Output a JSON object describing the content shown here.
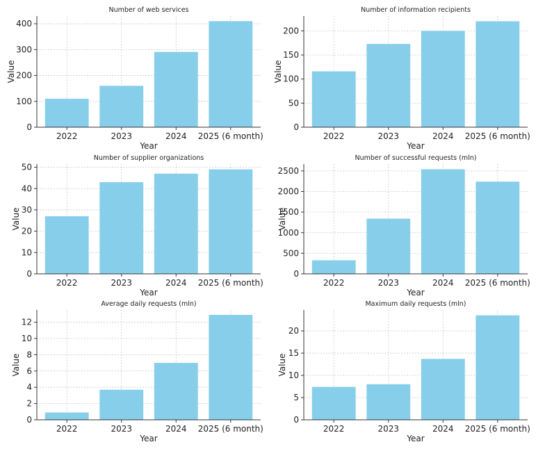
{
  "chart_data": [
    {
      "type": "bar",
      "title": "Number of web services",
      "xlabel": "Year",
      "ylabel": "Value",
      "categories": [
        "2022",
        "2023",
        "2024",
        "2025 (6 month)"
      ],
      "values": [
        110,
        160,
        291,
        410
      ],
      "ylim": [
        0,
        430
      ],
      "yticks": [
        0,
        100,
        200,
        300,
        400
      ],
      "grid": true,
      "color": "#87CEEB"
    },
    {
      "type": "bar",
      "title": "Number of information recipients",
      "xlabel": "Year",
      "ylabel": "Value",
      "categories": [
        "2022",
        "2023",
        "2024",
        "2025 (6 month)"
      ],
      "values": [
        116,
        173,
        200,
        220
      ],
      "ylim": [
        0,
        231
      ],
      "yticks": [
        0,
        50,
        100,
        150,
        200
      ],
      "grid": true,
      "color": "#87CEEB"
    },
    {
      "type": "bar",
      "title": "Number of supplier organizations",
      "xlabel": "Year",
      "ylabel": "Value",
      "categories": [
        "2022",
        "2023",
        "2024",
        "2025 (6 month)"
      ],
      "values": [
        27,
        43,
        47,
        49
      ],
      "ylim": [
        0,
        51.5
      ],
      "yticks": [
        0,
        10,
        20,
        30,
        40,
        50
      ],
      "grid": true,
      "color": "#87CEEB"
    },
    {
      "type": "bar",
      "title": "Number of successful requests (mln)",
      "xlabel": "Year",
      "ylabel": "Value",
      "categories": [
        "2022",
        "2023",
        "2024",
        "2025 (6 month)"
      ],
      "values": [
        330,
        1340,
        2540,
        2240
      ],
      "ylim": [
        0,
        2667
      ],
      "yticks": [
        0,
        500,
        1000,
        1500,
        2000,
        2500
      ],
      "grid": true,
      "color": "#87CEEB"
    },
    {
      "type": "bar",
      "title": "Average daily requests (mln)",
      "xlabel": "Year",
      "ylabel": "Value",
      "categories": [
        "2022",
        "2023",
        "2024",
        "2025 (6 month)"
      ],
      "values": [
        0.9,
        3.7,
        7.0,
        12.9
      ],
      "ylim": [
        0,
        13.5
      ],
      "yticks": [
        0,
        2,
        4,
        6,
        8,
        10,
        12
      ],
      "grid": true,
      "color": "#87CEEB"
    },
    {
      "type": "bar",
      "title": "Maximum daily requests (mln)",
      "xlabel": "Year",
      "ylabel": "Value",
      "categories": [
        "2022",
        "2023",
        "2024",
        "2025 (6 month)"
      ],
      "values": [
        7.4,
        8.0,
        13.7,
        23.5
      ],
      "ylim": [
        0,
        24.7
      ],
      "yticks": [
        0,
        5,
        10,
        15,
        20
      ],
      "grid": true,
      "color": "#87CEEB"
    }
  ]
}
